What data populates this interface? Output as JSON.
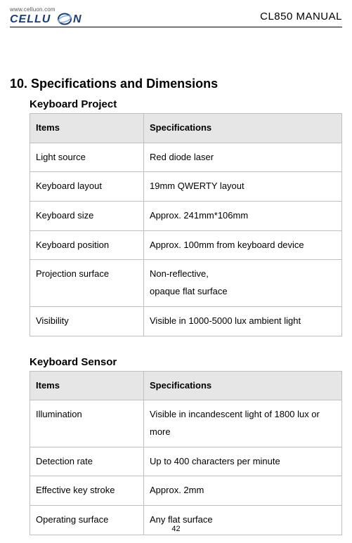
{
  "header": {
    "logo_url": "www.celluon.com",
    "logo_text": "CELLUON",
    "manual_title": "CL850 MANUAL"
  },
  "section_heading": "10. Specifications and Dimensions",
  "tables": [
    {
      "title": "Keyboard Project",
      "col_items": "Items",
      "col_spec": "Specifications",
      "rows": [
        {
          "item": "Light source",
          "spec": "Red diode laser"
        },
        {
          "item": "Keyboard layout",
          "spec": "19mm QWERTY layout"
        },
        {
          "item": "Keyboard size",
          "spec": "Approx. 241mm*106mm"
        },
        {
          "item": "Keyboard position",
          "spec": "Approx. 100mm from keyboard device"
        },
        {
          "item": "Projection surface",
          "spec": "Non-reflective,\nopaque flat surface"
        },
        {
          "item": "Visibility",
          "spec": "Visible in 1000-5000 lux ambient light"
        }
      ]
    },
    {
      "title": "Keyboard Sensor",
      "col_items": "Items",
      "col_spec": "Specifications",
      "rows": [
        {
          "item": "Illumination",
          "spec": "Visible in incandescent light of 1800 lux or more"
        },
        {
          "item": "Detection rate",
          "spec": "Up to 400 characters per minute"
        },
        {
          "item": "Effective key stroke",
          "spec": "Approx. 2mm"
        },
        {
          "item": "Operating surface",
          "spec": "Any flat surface"
        }
      ]
    }
  ],
  "page_number": "42",
  "style": {
    "background_color": "#ffffff",
    "text_color": "#000000",
    "border_color": "#bfbfbf",
    "header_bg": "#e6e6e6",
    "font_family": "Arial",
    "heading_fontsize_pt": 14,
    "subheading_fontsize_pt": 11,
    "cell_fontsize_pt": 10,
    "manual_title_fontsize_pt": 11,
    "page_number_fontsize_pt": 8
  }
}
